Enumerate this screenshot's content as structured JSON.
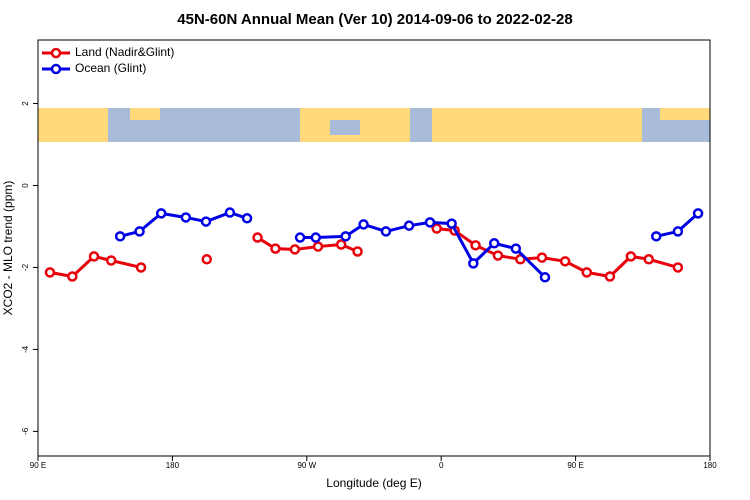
{
  "chart_data": {
    "type": "line",
    "title": "45N-60N Annual Mean (Ver 10)   2014-09-06 to 2022-02-28",
    "x_label": "Longitude (deg E)",
    "y_label": "XCO2 - MLO trend (ppm)",
    "xlim": [
      90,
      540
    ],
    "xticks": [
      {
        "value": 90,
        "label": "90 E"
      },
      180,
      {
        "value": 270,
        "label": "90 W"
      },
      {
        "value": 360,
        "label": "0"
      },
      {
        "value": 450,
        "label": "90 E"
      },
      {
        "value": 540,
        "label": "180"
      }
    ],
    "ylim": [
      -6.6,
      3.55
    ],
    "yticks": [
      2,
      0,
      -2,
      -4,
      -6
    ],
    "legend": "top-left",
    "series": [
      {
        "name": "Land (Nadir&Glint)",
        "color": "#e8000b",
        "x": [
          98,
          113,
          127.5,
          139,
          159,
          null,
          203,
          null,
          237,
          249,
          262,
          277.5,
          293,
          304,
          null,
          357,
          369,
          383,
          398,
          413,
          427.5,
          443,
          457.5,
          473,
          487,
          499,
          518.5
        ],
        "values": [
          -2.12,
          -2.22,
          -1.73,
          -1.83,
          -2.0,
          null,
          -1.8,
          null,
          -1.27,
          -1.54,
          -1.56,
          -1.49,
          -1.44,
          -1.61,
          null,
          -1.05,
          -1.1,
          -1.46,
          -1.71,
          -1.8,
          -1.76,
          -1.85,
          -2.12,
          -2.22,
          -1.73,
          -1.8,
          -2.0
        ]
      },
      {
        "name": "Ocean (Glint)",
        "color": "#0000e6",
        "x": [
          145,
          158,
          172.5,
          189,
          202.5,
          218.5,
          230,
          null,
          265.5,
          276,
          296,
          308,
          323,
          338.5,
          352.5,
          367,
          381.5,
          395.5,
          410,
          429.5,
          null,
          504,
          518.5,
          532
        ],
        "values": [
          -1.24,
          -1.12,
          -0.68,
          -0.78,
          -0.88,
          -0.66,
          -0.8,
          null,
          -1.27,
          -1.27,
          -1.24,
          -0.95,
          -1.12,
          -0.98,
          -0.9,
          -0.93,
          -1.9,
          -1.41,
          -1.54,
          -2.24,
          null,
          -1.24,
          -1.12,
          -0.68
        ]
      }
    ]
  }
}
